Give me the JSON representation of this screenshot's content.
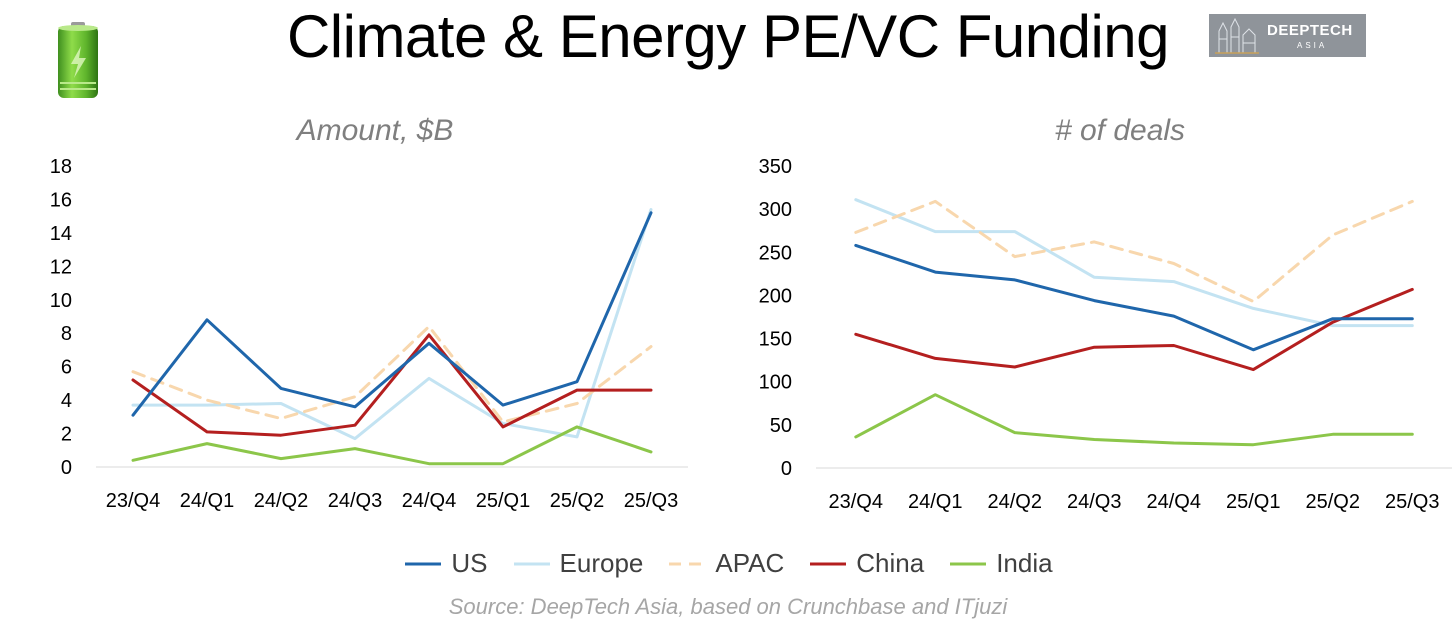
{
  "title": "Climate & Energy PE/VC Funding",
  "logo": {
    "line1": "DEEPTECH",
    "line2": "ASIA"
  },
  "legend_items": [
    {
      "label": "US",
      "color": "#1f66ab",
      "dash": false
    },
    {
      "label": "Europe",
      "color": "#c3e3f2",
      "dash": false
    },
    {
      "label": "APAC",
      "color": "#f8d7ad",
      "dash": true
    },
    {
      "label": "China",
      "color": "#b41f1f",
      "dash": false
    },
    {
      "label": "India",
      "color": "#8cc64a",
      "dash": false
    }
  ],
  "source": "Source: DeepTech Asia, based on Crunchbase and ITjuzi",
  "chart_data": [
    {
      "type": "line",
      "subtitle": "Amount, $B",
      "categories": [
        "23/Q4",
        "24/Q1",
        "24/Q2",
        "24/Q3",
        "24/Q4",
        "25/Q1",
        "25/Q2",
        "25/Q3"
      ],
      "ylim": [
        0,
        18
      ],
      "yticks": [
        0,
        2,
        4,
        6,
        8,
        10,
        12,
        14,
        16,
        18
      ],
      "series": [
        {
          "name": "US",
          "values": [
            3.1,
            8.8,
            4.7,
            3.6,
            7.4,
            3.7,
            5.1,
            15.2
          ]
        },
        {
          "name": "Europe",
          "values": [
            3.7,
            3.7,
            3.8,
            1.7,
            5.3,
            2.6,
            1.8,
            15.4
          ]
        },
        {
          "name": "APAC",
          "values": [
            5.7,
            4.0,
            2.9,
            4.2,
            8.4,
            2.7,
            3.8,
            7.2
          ]
        },
        {
          "name": "China",
          "values": [
            5.2,
            2.1,
            1.9,
            2.5,
            7.9,
            2.4,
            4.6,
            4.6
          ]
        },
        {
          "name": "India",
          "values": [
            0.4,
            1.4,
            0.5,
            1.1,
            0.2,
            0.2,
            2.4,
            0.9
          ]
        }
      ]
    },
    {
      "type": "line",
      "subtitle": "# of deals",
      "categories": [
        "23/Q4",
        "24/Q1",
        "24/Q2",
        "24/Q3",
        "24/Q4",
        "25/Q1",
        "25/Q2",
        "25/Q3"
      ],
      "ylim": [
        0,
        350
      ],
      "yticks": [
        0,
        50,
        100,
        150,
        200,
        250,
        300,
        350
      ],
      "series": [
        {
          "name": "US",
          "values": [
            258,
            227,
            218,
            194,
            176,
            137,
            173,
            173
          ]
        },
        {
          "name": "Europe",
          "values": [
            311,
            274,
            274,
            221,
            216,
            185,
            165,
            165
          ]
        },
        {
          "name": "APAC",
          "values": [
            273,
            309,
            245,
            262,
            237,
            193,
            270,
            309
          ]
        },
        {
          "name": "China",
          "values": [
            155,
            127,
            117,
            140,
            142,
            114,
            169,
            207
          ]
        },
        {
          "name": "India",
          "values": [
            36,
            85,
            41,
            33,
            29,
            27,
            39,
            39
          ]
        }
      ]
    }
  ]
}
